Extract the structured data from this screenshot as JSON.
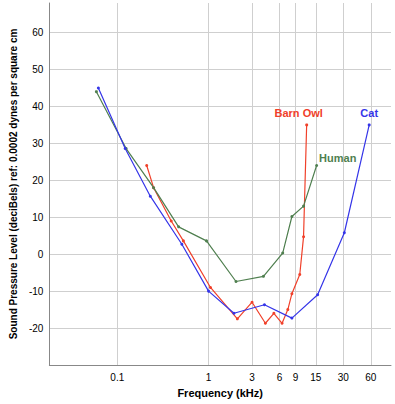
{
  "chart_data": {
    "type": "line",
    "x_label": "Frequency (kHz)",
    "y_label": "Sound Pressure Level (deciBels) ref: 0.0002 dynes per square cm",
    "log": "x",
    "grid": true,
    "marker": "circle",
    "xlim": [
      0.018,
      100
    ],
    "xticks": [
      0.1,
      1,
      3,
      6,
      9,
      15,
      30,
      60
    ],
    "ylim": [
      -30,
      68
    ],
    "yticks": [
      -20,
      -10,
      0,
      10,
      20,
      30,
      40,
      50,
      60
    ],
    "series": [
      {
        "name": "Barn Owl",
        "color": "#f0402a",
        "x": [
          0.21,
          0.25,
          0.39,
          0.53,
          1.05,
          2.07,
          3.0,
          4.2,
          5.2,
          6.4,
          7.4,
          8.2,
          10,
          11,
          11.9
        ],
        "values": [
          24,
          18,
          9,
          3.6,
          -9,
          -17.5,
          -13,
          -18.7,
          -16,
          -18.7,
          -15,
          -10.7,
          -5.5,
          4.7,
          35
        ]
      },
      {
        "name": "Human",
        "color": "#4f7f4f",
        "x": [
          0.059,
          0.125,
          0.25,
          0.47,
          0.95,
          2.0,
          4.0,
          6.5,
          8.2,
          11,
          15.3
        ],
        "values": [
          44,
          28.6,
          18,
          7.4,
          3.6,
          -7.4,
          -6,
          0.3,
          10.2,
          13,
          24
        ]
      },
      {
        "name": "Cat",
        "color": "#3535e8",
        "x": [
          0.062,
          0.122,
          0.23,
          0.51,
          1.0,
          1.9,
          4.1,
          8.2,
          15.7,
          30.8,
          57.7
        ],
        "values": [
          45,
          28.6,
          15.7,
          2.7,
          -10,
          -16,
          -13.7,
          -17.3,
          -11,
          5.8,
          35
        ]
      }
    ]
  }
}
